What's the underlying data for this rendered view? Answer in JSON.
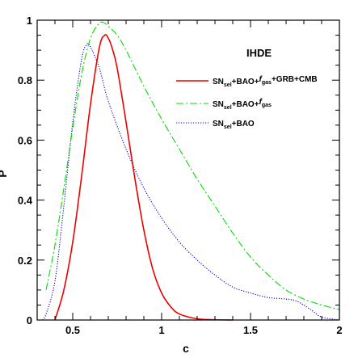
{
  "chart_data": {
    "type": "line",
    "annotation": "IHDE",
    "xlabel": "c",
    "ylabel": "P",
    "xlim": [
      0.3,
      2.0
    ],
    "ylim": [
      0,
      1
    ],
    "xticks": [
      0.5,
      1,
      1.5,
      2
    ],
    "xtick_labels": [
      "0.5",
      "1",
      "1.5",
      "2"
    ],
    "yticks": [
      0,
      0.2,
      0.4,
      0.6,
      0.8,
      1
    ],
    "ytick_labels": [
      "0",
      "0.2",
      "0.4",
      "0.6",
      "0.8",
      "1"
    ],
    "legend_position": "top-right",
    "series": [
      {
        "name": "SNsel+BAO+fgas+GRB+CMB",
        "legend_parts": [
          [
            "SN",
            ""
          ],
          [
            "sel",
            "sub"
          ],
          [
            "+BAO+",
            ""
          ],
          [
            "f",
            "italic"
          ],
          [
            "gas",
            "sub"
          ],
          [
            "+GRB+CMB",
            ""
          ]
        ],
        "color": "#ee0000",
        "style": "solid",
        "x": [
          0.4,
          0.45,
          0.5,
          0.55,
          0.6,
          0.65,
          0.68,
          0.7,
          0.72,
          0.75,
          0.8,
          0.85,
          0.9,
          0.95,
          1.0,
          1.05,
          1.1,
          1.2,
          1.3,
          1.4
        ],
        "y": [
          0.0,
          0.1,
          0.26,
          0.48,
          0.72,
          0.91,
          0.95,
          0.94,
          0.91,
          0.84,
          0.66,
          0.47,
          0.3,
          0.17,
          0.09,
          0.045,
          0.02,
          0.004,
          0.001,
          0.0
        ]
      },
      {
        "name": "SNsel+BAO+fgas",
        "legend_parts": [
          [
            "SN",
            ""
          ],
          [
            "sel",
            "sub"
          ],
          [
            "+BAO+",
            ""
          ],
          [
            "f",
            "italic"
          ],
          [
            "gas",
            "sub"
          ]
        ],
        "color": "#00dd00",
        "style": "dashdot",
        "x": [
          0.35,
          0.4,
          0.45,
          0.5,
          0.55,
          0.6,
          0.65,
          0.68,
          0.7,
          0.75,
          0.8,
          0.9,
          1.0,
          1.1,
          1.2,
          1.3,
          1.4,
          1.5,
          1.6,
          1.7,
          1.8,
          1.9,
          2.0
        ],
        "y": [
          0.1,
          0.25,
          0.44,
          0.64,
          0.82,
          0.94,
          0.99,
          0.99,
          0.98,
          0.95,
          0.9,
          0.78,
          0.67,
          0.57,
          0.47,
          0.38,
          0.29,
          0.21,
          0.15,
          0.1,
          0.07,
          0.05,
          0.035
        ]
      },
      {
        "name": "SNsel+BAO",
        "legend_parts": [
          [
            "SN",
            ""
          ],
          [
            "sel",
            "sub"
          ],
          [
            "+BAO",
            ""
          ]
        ],
        "color": "#0000cc",
        "style": "dotted",
        "x": [
          0.33,
          0.35,
          0.4,
          0.45,
          0.5,
          0.55,
          0.58,
          0.6,
          0.65,
          0.7,
          0.8,
          0.9,
          1.0,
          1.1,
          1.2,
          1.3,
          1.4,
          1.5,
          1.6,
          1.7,
          1.75,
          1.8,
          1.85,
          1.9,
          2.0
        ],
        "y": [
          0.0,
          0.02,
          0.13,
          0.38,
          0.66,
          0.87,
          0.92,
          0.91,
          0.84,
          0.73,
          0.57,
          0.44,
          0.34,
          0.26,
          0.2,
          0.15,
          0.11,
          0.09,
          0.075,
          0.07,
          0.065,
          0.05,
          0.03,
          0.01,
          0.0
        ]
      }
    ]
  }
}
